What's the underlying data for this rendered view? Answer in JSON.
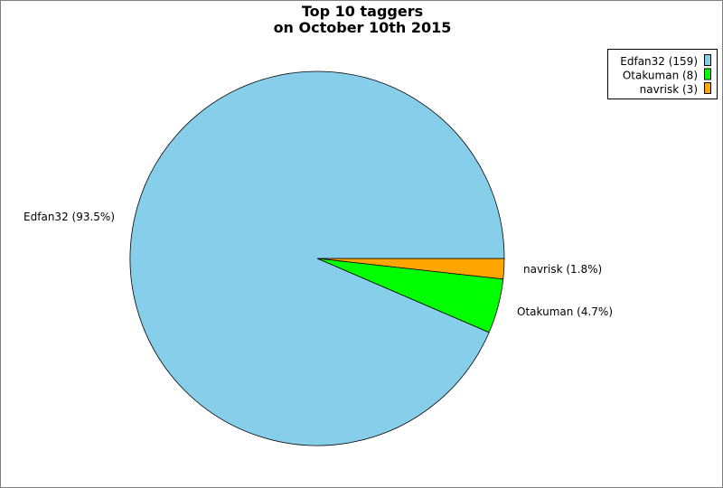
{
  "chart_data": {
    "type": "pie",
    "title_lines": [
      "Top 10 taggers",
      "on October 10th 2015"
    ],
    "slices": [
      {
        "name": "navrisk",
        "value": 3,
        "percent_label": "navrisk (1.8%)",
        "legend_label": "navrisk (3)",
        "color": "#ffa500"
      },
      {
        "name": "Otakuman",
        "value": 8,
        "percent_label": "Otakuman (4.7%)",
        "legend_label": "Otakuman (8)",
        "color": "#00ff00"
      },
      {
        "name": "Edfan32",
        "value": 159,
        "percent_label": "Edfan32 (93.5%)",
        "legend_label": "Edfan32 (159)",
        "color": "#87ceeb"
      }
    ],
    "legend_order": [
      2,
      1,
      0
    ],
    "start_angle_deg": 0,
    "direction": "clockwise",
    "legend_placement": "top-right"
  }
}
